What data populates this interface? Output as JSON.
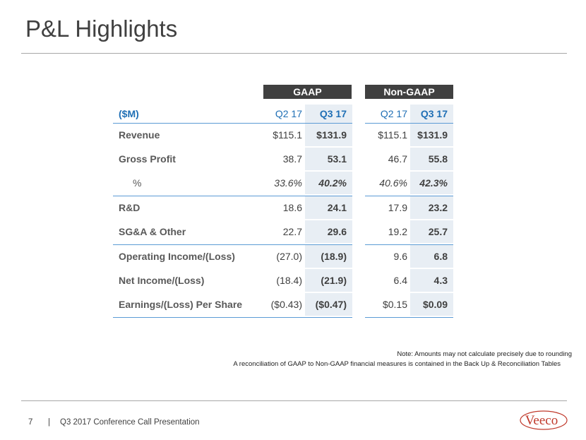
{
  "title": "P&L Highlights",
  "headers": {
    "gaap": "GAAP",
    "non_gaap": "Non-GAAP"
  },
  "table": {
    "columns": {
      "label": "($M)",
      "q2": "Q2 17",
      "q3": "Q3 17"
    },
    "rows": [
      {
        "label": "Revenue",
        "gaap_q2": "$115.1",
        "gaap_q3": "$131.9",
        "ng_q2": "$115.1",
        "ng_q3": "$131.9"
      },
      {
        "label": "Gross Profit",
        "gaap_q2": "38.7",
        "gaap_q3": "53.1",
        "ng_q2": "46.7",
        "ng_q3": "55.8"
      },
      {
        "label": "%",
        "gaap_q2": "33.6%",
        "gaap_q3": "40.2%",
        "ng_q2": "40.6%",
        "ng_q3": "42.3%"
      },
      {
        "label": "R&D",
        "gaap_q2": "18.6",
        "gaap_q3": "24.1",
        "ng_q2": "17.9",
        "ng_q3": "23.2"
      },
      {
        "label": "SG&A & Other",
        "gaap_q2": "22.7",
        "gaap_q3": "29.6",
        "ng_q2": "19.2",
        "ng_q3": "25.7"
      },
      {
        "label": "Operating Income/(Loss)",
        "gaap_q2": "(27.0)",
        "gaap_q3": "(18.9)",
        "ng_q2": "9.6",
        "ng_q3": "6.8"
      },
      {
        "label": "Net Income/(Loss)",
        "gaap_q2": "(18.4)",
        "gaap_q3": "(21.9)",
        "ng_q2": "6.4",
        "ng_q3": "4.3"
      },
      {
        "label": "Earnings/(Loss) Per Share",
        "gaap_q2": "($0.43)",
        "gaap_q3": "($0.47)",
        "ng_q2": "$0.15",
        "ng_q3": "$0.09"
      }
    ]
  },
  "notes": {
    "line1": "Note: Amounts may not calculate precisely due to rounding",
    "line2": "A reconciliation of GAAP to Non-GAAP financial measures is contained in the Back Up & Reconciliation Tables"
  },
  "footer": {
    "page": "7",
    "separator": "|",
    "text": "Q3 2017 Conference Call  Presentation"
  },
  "logo": {
    "text": "Veeco",
    "color": "#c0392b"
  }
}
